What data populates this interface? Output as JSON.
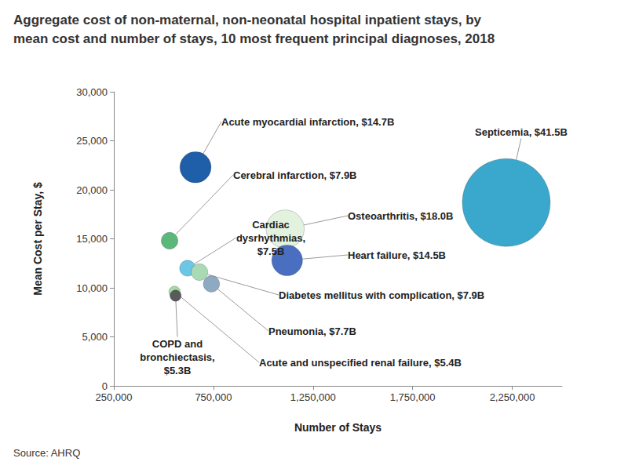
{
  "chart_data": {
    "type": "bubble",
    "title": "Aggregate cost of non-maternal, non-neonatal hospital inpatient stays, by\nmean cost and number of stays, 10 most frequent principal diagnoses, 2018",
    "source": "Source: AHRQ",
    "x_label": "Number of Stays",
    "y_label": "Mean Cost per Stay, $",
    "labels": [
      "Septicemia, $41.5B",
      "Acute myocardial infarction, $14.7B",
      "Cerebral infarction, $7.9B",
      "Cardiac\ndysrhythmias,\n$7.5B",
      "Osteoarthritis, $18.0B",
      "Heart failure, $14.5B",
      "Diabetes mellitus with complication, $7.9B",
      "Pneumonia, $7.7B",
      "Acute and unspecified renal failure, $5.4B",
      "COPD and\nbronchiectasis,\n$5.3B"
    ],
    "x": [
      2220000,
      660000,
      530000,
      620000,
      1110000,
      1120000,
      680000,
      740000,
      555000,
      560000
    ],
    "values": [
      18700,
      22300,
      14800,
      12000,
      16000,
      12800,
      11600,
      10400,
      9600,
      9200
    ],
    "sizes": [
      41.5,
      14.7,
      7.9,
      7.5,
      18.0,
      14.5,
      7.9,
      7.7,
      5.4,
      5.3
    ],
    "colors": [
      "#3aa8cc",
      "#1f5ea8",
      "#5cb87a",
      "#6cc6e6",
      "#e2f2de",
      "#4a6fc1",
      "#a9dab4",
      "#8ea9c2",
      "#a6d9a2",
      "#5a5a5a"
    ],
    "xlim": [
      250000,
      2500000
    ],
    "xticks": [
      {
        "value": 250000,
        "label": "250,000"
      },
      {
        "value": 750000,
        "label": "750,000"
      },
      {
        "value": 1250000,
        "label": "1,250,000"
      },
      {
        "value": 1750000,
        "label": "1,750,000"
      },
      {
        "value": 2250000,
        "label": "2,250,000"
      }
    ],
    "ylim": [
      0,
      30000
    ],
    "yticks": [
      0,
      {
        "value": 5000,
        "label": "5,000"
      },
      {
        "value": 10000,
        "label": "10,000"
      },
      {
        "value": 15000,
        "label": "15,000"
      },
      {
        "value": 20000,
        "label": "20,000"
      },
      {
        "value": 25000,
        "label": "25,000"
      },
      {
        "value": 30000,
        "label": "30,000"
      }
    ],
    "grid": false
  }
}
